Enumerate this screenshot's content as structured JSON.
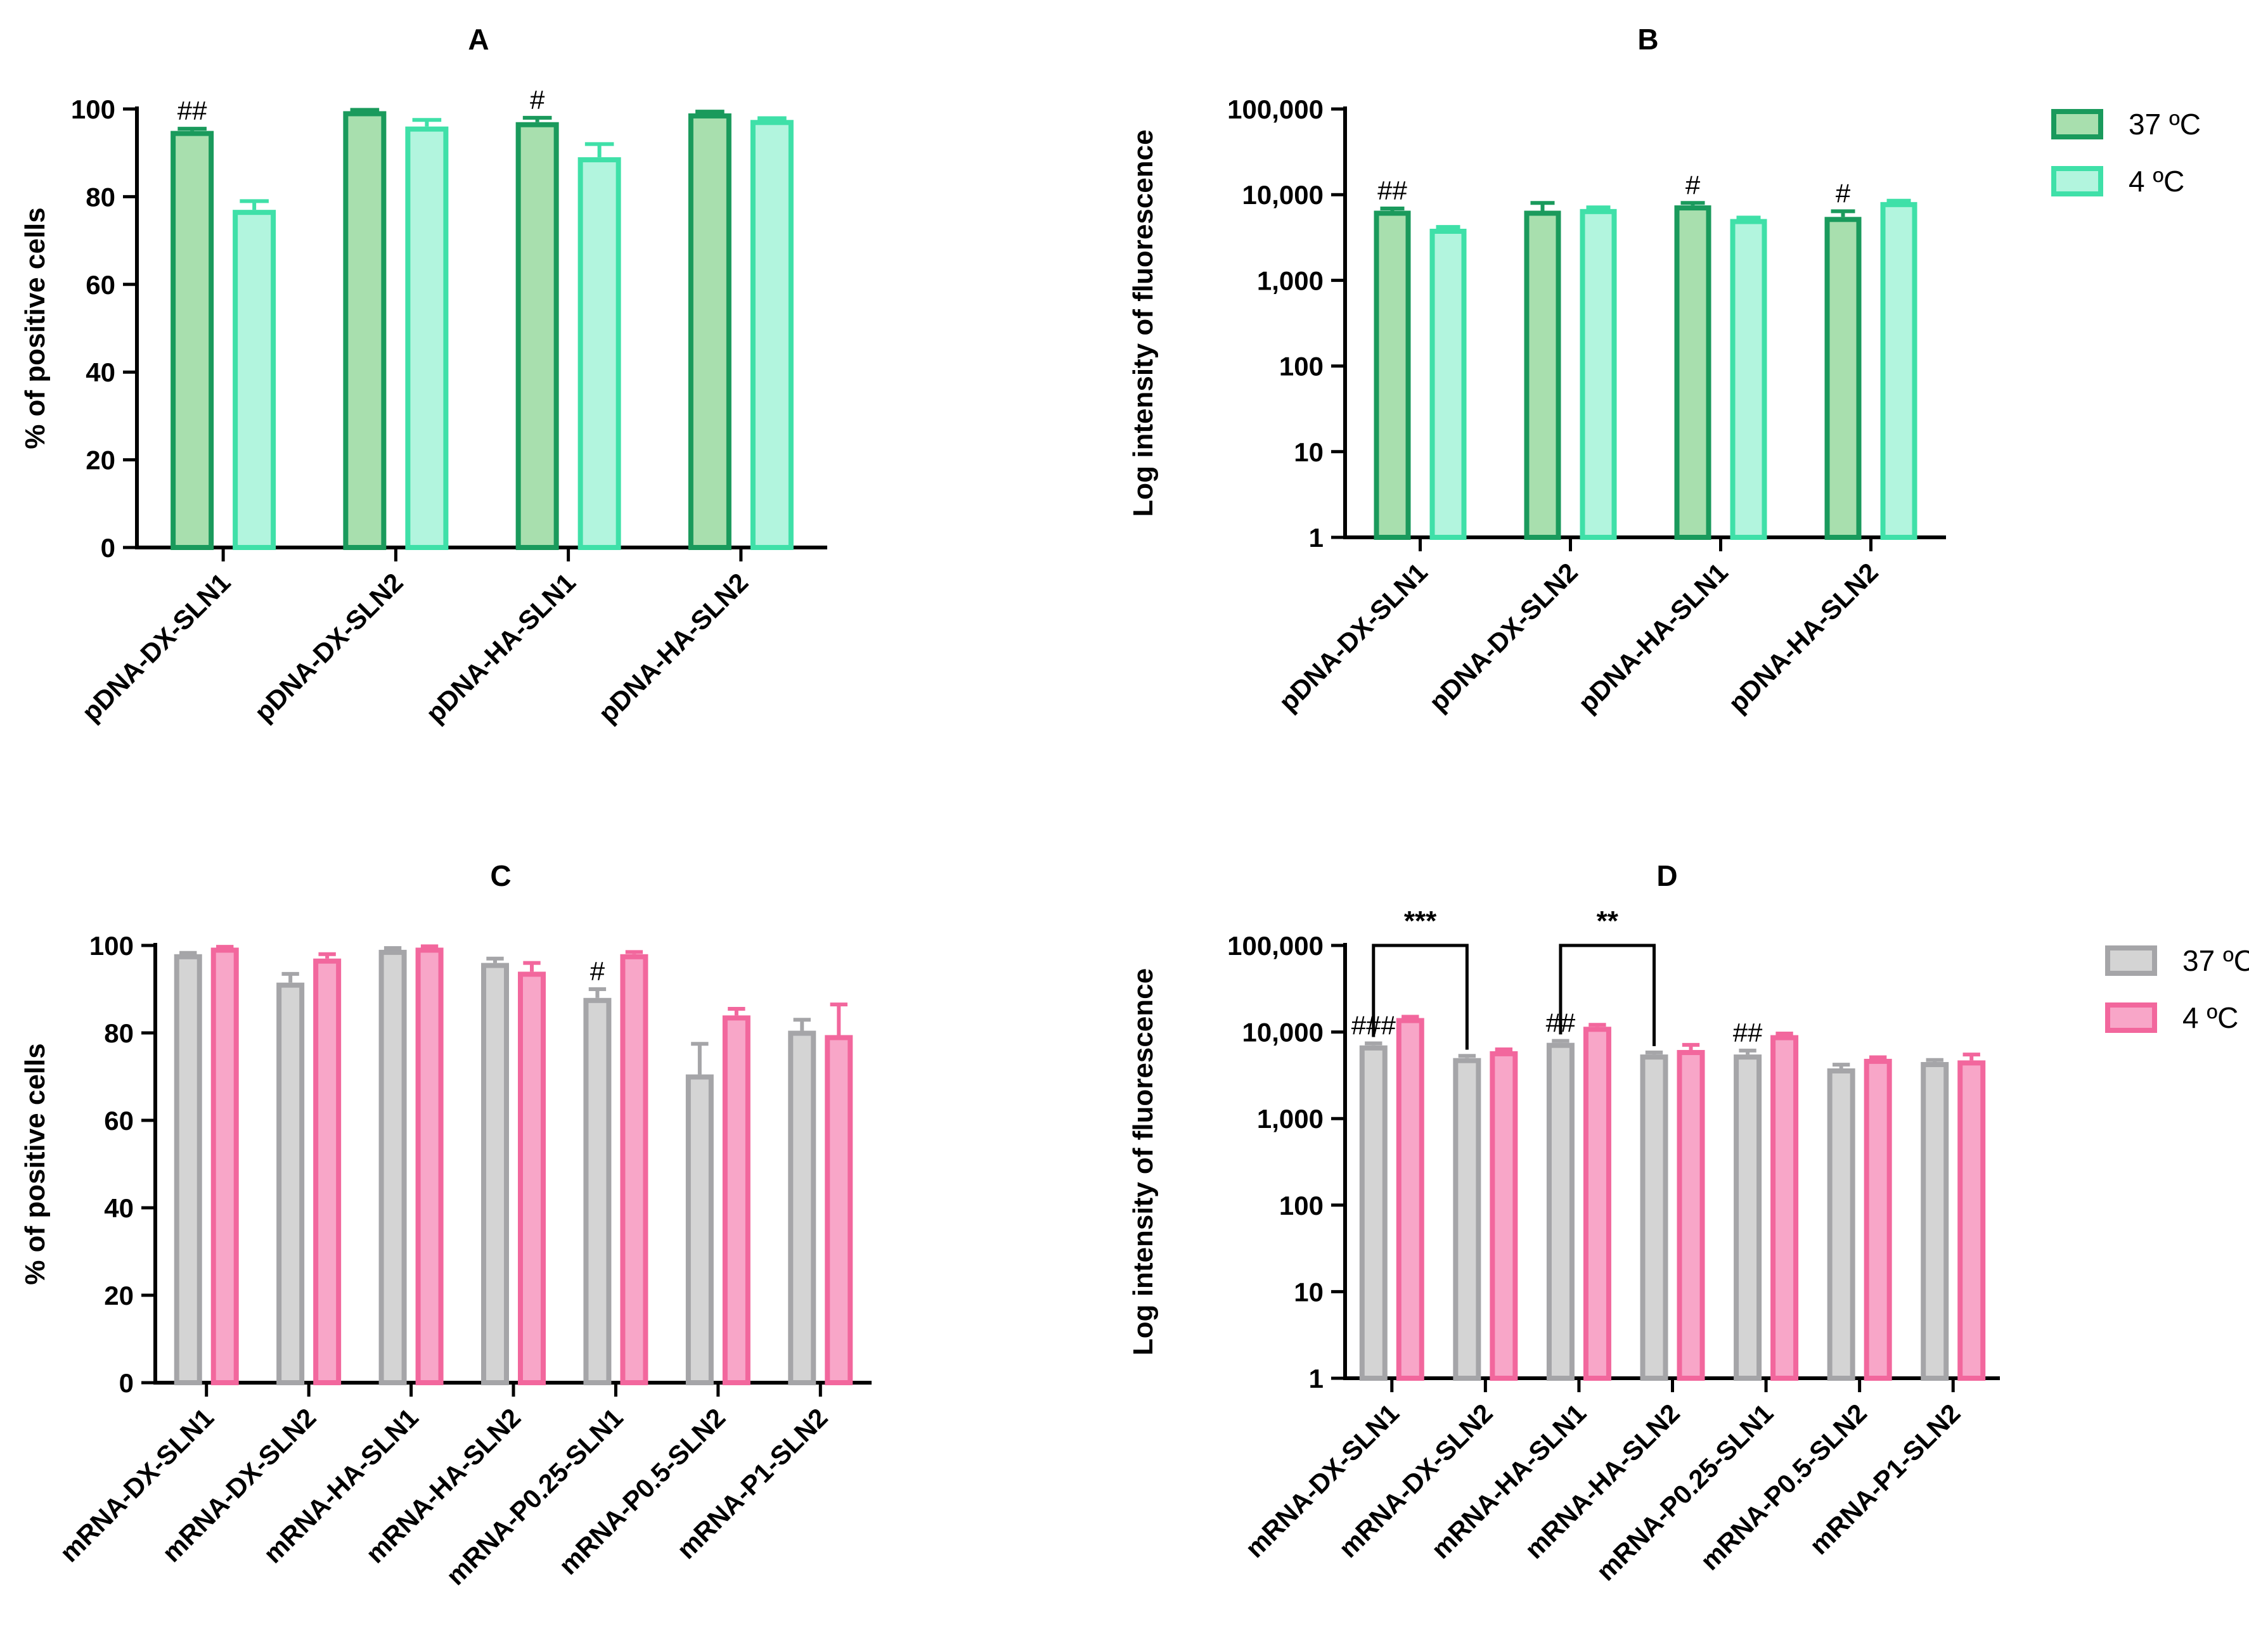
{
  "chart_data": [
    {
      "id": "A",
      "type": "bar",
      "title": "A",
      "ylabel": "% of positive cells",
      "xlabel": "",
      "scale": "linear",
      "ylim": [
        0,
        100
      ],
      "yticks": [
        0,
        20,
        40,
        60,
        80,
        100
      ],
      "ytick_labels": [
        "0",
        "20",
        "40",
        "60",
        "80",
        "100"
      ],
      "categories": [
        "pDNA-DX-SLN1",
        "pDNA-DX-SLN2",
        "pDNA-HA-SLN1",
        "pDNA-HA-SLN2"
      ],
      "series": [
        {
          "name": "37 ºC",
          "values": [
            95,
            99.5,
            97,
            99
          ],
          "errors": [
            0.5,
            0.3,
            1.0,
            0.4
          ],
          "fill": "#a8dfae",
          "stroke": "#1a9a5c"
        },
        {
          "name": "4 ºC",
          "values": [
            77,
            96,
            89,
            97.5
          ],
          "errors": [
            2.0,
            1.5,
            3.0,
            0.4
          ],
          "fill": "#b2f5de",
          "stroke": "#3fe0a8"
        }
      ],
      "annotations": [
        {
          "category": 0,
          "series": 0,
          "text": "##"
        },
        {
          "category": 2,
          "series": 0,
          "text": "#"
        }
      ],
      "legend": "none"
    },
    {
      "id": "B",
      "type": "bar",
      "title": "B",
      "ylabel": "Log intensity of fluorescence",
      "xlabel": "",
      "scale": "log",
      "ylim": [
        1,
        100000
      ],
      "yticks": [
        1,
        10,
        100,
        1000,
        10000,
        100000
      ],
      "ytick_labels": [
        "1",
        "10",
        "100",
        "1,000",
        "10,000",
        "100,000"
      ],
      "categories": [
        "pDNA-DX-SLN1",
        "pDNA-DX-SLN2",
        "pDNA-HA-SLN1",
        "pDNA-HA-SLN2"
      ],
      "series": [
        {
          "name": "37 ºC",
          "values": [
            6500,
            6500,
            7500,
            5500
          ],
          "errors": [
            400,
            1500,
            500,
            900
          ],
          "fill": "#a8dfae",
          "stroke": "#1a9a5c"
        },
        {
          "name": "4 ºC",
          "values": [
            4000,
            6800,
            5200,
            8200
          ],
          "errors": [
            200,
            300,
            200,
            300
          ],
          "fill": "#b2f5de",
          "stroke": "#3fe0a8"
        }
      ],
      "annotations": [
        {
          "category": 0,
          "series": 0,
          "text": "##"
        },
        {
          "category": 2,
          "series": 0,
          "text": "#"
        },
        {
          "category": 3,
          "series": 0,
          "text": "#"
        }
      ],
      "legend": "top-right"
    },
    {
      "id": "C",
      "type": "bar",
      "title": "C",
      "ylabel": "% of positive cells",
      "xlabel": "",
      "scale": "linear",
      "ylim": [
        0,
        100
      ],
      "yticks": [
        0,
        20,
        40,
        60,
        80,
        100
      ],
      "ytick_labels": [
        "0",
        "20",
        "40",
        "60",
        "80",
        "100"
      ],
      "categories": [
        "mRNA-DX-SLN1",
        "mRNA-DX-SLN2",
        "mRNA-HA-SLN1",
        "mRNA-HA-SLN2",
        "mRNA-P0.25-SLN1",
        "mRNA-P0.5-SLN2",
        "mRNA-P1-SLN2"
      ],
      "series": [
        {
          "name": "37 ºC",
          "values": [
            98,
            91.5,
            99,
            96,
            88,
            70.5,
            80.5
          ],
          "errors": [
            0.3,
            2.0,
            0.4,
            1.0,
            2.0,
            7.0,
            2.5
          ],
          "fill": "#d4d4d4",
          "stroke": "#a5a5a8"
        },
        {
          "name": "4 ºC",
          "values": [
            99.5,
            97,
            99.5,
            94,
            98,
            84,
            79.5
          ],
          "errors": [
            0.2,
            1.0,
            0.3,
            2.0,
            0.5,
            1.5,
            7.0
          ],
          "fill": "#f8a6c8",
          "stroke": "#f2679d"
        }
      ],
      "annotations": [
        {
          "category": 4,
          "series": 0,
          "text": "#"
        }
      ],
      "legend": "none"
    },
    {
      "id": "D",
      "type": "bar",
      "title": "D",
      "ylabel": "Log intensity of fluorescence",
      "xlabel": "",
      "scale": "log",
      "ylim": [
        1,
        100000
      ],
      "yticks": [
        1,
        10,
        100,
        1000,
        10000,
        100000
      ],
      "ytick_labels": [
        "1",
        "10",
        "100",
        "1,000",
        "10,000",
        "100,000"
      ],
      "categories": [
        "mRNA-DX-SLN1",
        "mRNA-DX-SLN2",
        "mRNA-HA-SLN1",
        "mRNA-HA-SLN2",
        "mRNA-P0.25-SLN1",
        "mRNA-P0.5-SLN2",
        "mRNA-P1-SLN2"
      ],
      "series": [
        {
          "name": "37 ºC",
          "values": [
            7000,
            5000,
            7500,
            5500,
            5500,
            3800,
            4500
          ],
          "errors": [
            400,
            300,
            400,
            300,
            600,
            400,
            250
          ],
          "fill": "#d4d4d4",
          "stroke": "#a5a5a8"
        },
        {
          "name": "4 ºC",
          "values": [
            14500,
            6000,
            11500,
            6200,
            9200,
            4900,
            4700
          ],
          "errors": [
            500,
            300,
            600,
            900,
            400,
            200,
            800
          ],
          "fill": "#f8a6c8",
          "stroke": "#f2679d"
        }
      ],
      "annotations": [
        {
          "category": 0,
          "series": 0,
          "text": "###"
        },
        {
          "category": 2,
          "series": 0,
          "text": "##"
        },
        {
          "category": 4,
          "series": 0,
          "text": "##"
        }
      ],
      "significance": [
        {
          "from": 0,
          "to": 1,
          "text": "***"
        },
        {
          "from": 2,
          "to": 3,
          "text": "**"
        }
      ],
      "legend": "top-right"
    }
  ]
}
